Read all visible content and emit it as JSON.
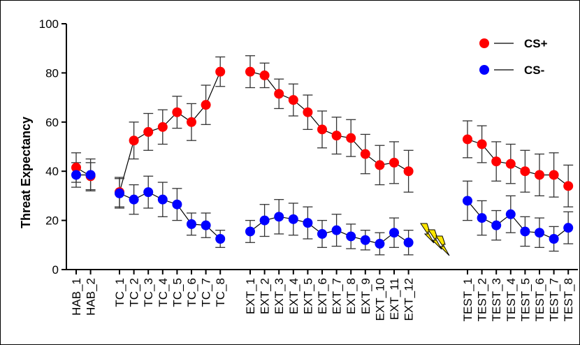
{
  "chart_data": {
    "type": "line",
    "title": "",
    "xlabel": "",
    "ylabel": "Threat Expectancy",
    "ylim": [
      0,
      100
    ],
    "yticks": [
      0,
      20,
      40,
      60,
      80,
      100
    ],
    "grid": false,
    "legend_position": "top-right",
    "categories": [
      "HAB_1",
      "HAB_2",
      "TC_1",
      "TC_2",
      "TC_3",
      "TC_4",
      "TC_5",
      "TC_6",
      "TC_7",
      "TC_8",
      "EXT_1",
      "EXT_2",
      "EXT_3",
      "EXT_4",
      "EXT_5",
      "EXT_6",
      "EXT_7",
      "EXT_8",
      "EXT_9",
      "EXT_10",
      "EXT_11",
      "EXT_12",
      "TEST_1",
      "TEST_2",
      "TEST_3",
      "TEST_4",
      "TEST_5",
      "TEST_6",
      "TEST_7",
      "TEST_8"
    ],
    "phases": [
      {
        "name": "HAB",
        "categories": [
          "HAB_1",
          "HAB_2"
        ]
      },
      {
        "name": "TC",
        "categories": [
          "TC_1",
          "TC_2",
          "TC_3",
          "TC_4",
          "TC_5",
          "TC_6",
          "TC_7",
          "TC_8"
        ]
      },
      {
        "name": "EXT",
        "categories": [
          "EXT_1",
          "EXT_2",
          "EXT_3",
          "EXT_4",
          "EXT_5",
          "EXT_6",
          "EXT_7",
          "EXT_8",
          "EXT_9",
          "EXT_10",
          "EXT_11",
          "EXT_12"
        ]
      },
      {
        "name": "TEST",
        "categories": [
          "TEST_1",
          "TEST_2",
          "TEST_3",
          "TEST_4",
          "TEST_5",
          "TEST_6",
          "TEST_7",
          "TEST_8"
        ]
      }
    ],
    "series": [
      {
        "name": "CS+",
        "color": "#ff0000",
        "values": [
          41.5,
          38,
          31.5,
          52.5,
          56,
          58,
          64,
          60,
          67,
          80.5,
          80.5,
          79,
          71.5,
          69,
          64,
          57,
          54.5,
          53.5,
          47,
          42.5,
          43.5,
          40,
          53,
          51,
          44,
          43,
          40,
          38.5,
          38.5,
          34
        ],
        "errors": [
          6,
          5.5,
          6,
          7.5,
          7.5,
          7,
          6.5,
          7.5,
          8,
          6,
          6.5,
          5,
          6,
          6.5,
          7,
          7.5,
          7.5,
          7.5,
          8,
          8,
          8.5,
          8.5,
          7.5,
          7.5,
          8,
          8,
          8.5,
          8.5,
          9,
          8.5
        ]
      },
      {
        "name": "CS-",
        "color": "#0000ff",
        "values": [
          38.5,
          38.5,
          31,
          28.5,
          31.5,
          28.5,
          26.5,
          18.5,
          18,
          12.5,
          15.5,
          20,
          21.5,
          20.5,
          19,
          14.5,
          16,
          13.5,
          12,
          10.5,
          15,
          11,
          28,
          21,
          18,
          22.5,
          15.5,
          15,
          12.5,
          17
        ],
        "errors": [
          5,
          6.5,
          6,
          6,
          6.5,
          7,
          6.5,
          4.5,
          5,
          3.5,
          4.5,
          6.5,
          7,
          6.5,
          6.5,
          5.5,
          6.5,
          5,
          4,
          4.5,
          6,
          5,
          8,
          7,
          6,
          7.5,
          6,
          6,
          5,
          6.5
        ]
      }
    ],
    "annotations": [
      {
        "type": "lightning-bolt",
        "count": 3,
        "between": [
          "EXT_12",
          "TEST_1"
        ]
      }
    ]
  }
}
